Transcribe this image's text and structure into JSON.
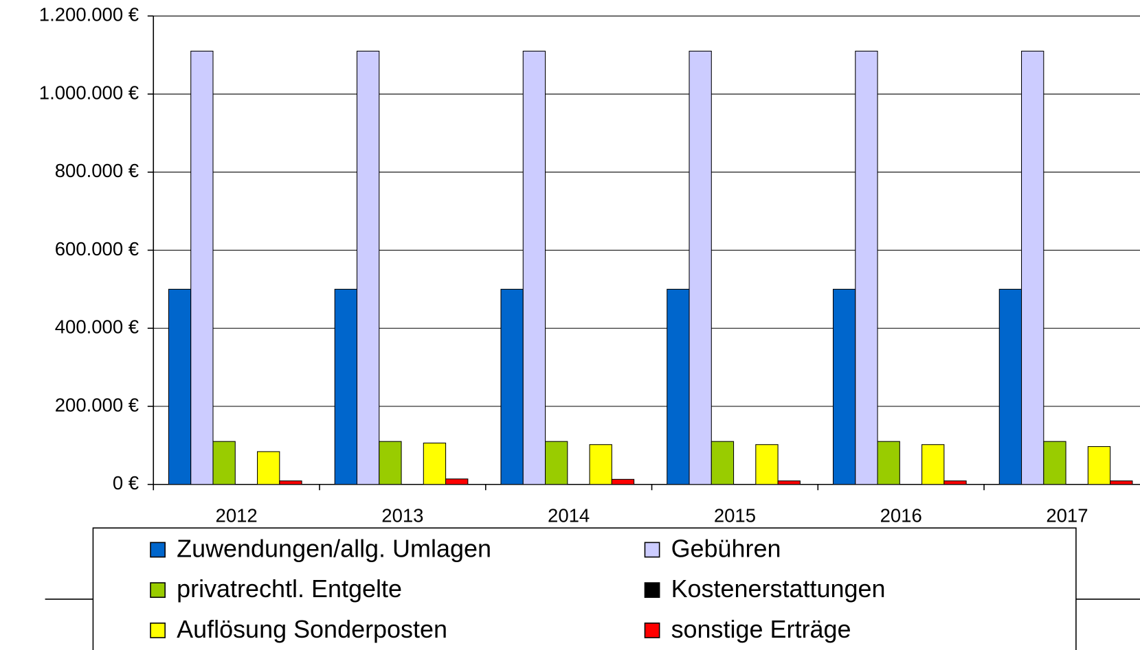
{
  "chart_data": {
    "type": "bar",
    "categories": [
      "2012",
      "2013",
      "2014",
      "2015",
      "2016",
      "2017"
    ],
    "series": [
      {
        "name": "Zuwendungen/allg. Umlagen",
        "color": "#0066cc",
        "values": [
          500000,
          500000,
          500000,
          500000,
          500000,
          500000
        ]
      },
      {
        "name": "Gebühren",
        "color": "#ccccff",
        "values": [
          1110000,
          1110000,
          1110000,
          1110000,
          1110000,
          1110000
        ]
      },
      {
        "name": "privatrechtl. Entgelte",
        "color": "#99cc00",
        "values": [
          110000,
          110000,
          110000,
          110000,
          110000,
          110000
        ]
      },
      {
        "name": "Kostenerstattungen",
        "color": "#000000",
        "values": [
          0,
          0,
          0,
          0,
          0,
          0
        ]
      },
      {
        "name": "Auflösung Sonderposten",
        "color": "#ffff00",
        "values": [
          84000,
          106000,
          102000,
          102000,
          102000,
          97000
        ]
      },
      {
        "name": "sonstige Erträge",
        "color": "#ff0000",
        "values": [
          9000,
          14000,
          13000,
          9000,
          9000,
          9000
        ]
      }
    ],
    "ylim": [
      0,
      1200000
    ],
    "yticks": [
      {
        "value": 0,
        "label": "0 €"
      },
      {
        "value": 200000,
        "label": "200.000 €"
      },
      {
        "value": 400000,
        "label": "400.000 €"
      },
      {
        "value": 600000,
        "label": "600.000 €"
      },
      {
        "value": 800000,
        "label": "800.000 €"
      },
      {
        "value": 1000000,
        "label": "1.000.000 €"
      },
      {
        "value": 1200000,
        "label": "1.200.000 €"
      }
    ],
    "grid": true,
    "legend": "bottom"
  }
}
